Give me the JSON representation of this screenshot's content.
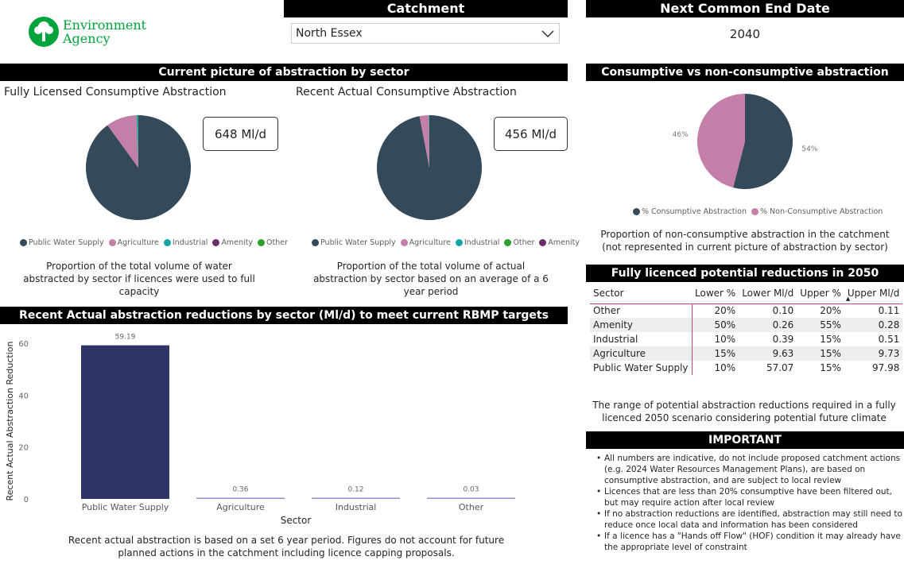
{
  "logo": {
    "text_line1": "Environment",
    "text_line2": "Agency",
    "color": "#00A33B"
  },
  "catchment": {
    "title": "Catchment",
    "selected": "North Essex"
  },
  "end_date": {
    "title": "Next Common End Date",
    "value": "2040"
  },
  "sector_section": {
    "title": "Current picture of abstraction by sector"
  },
  "colors": {
    "Public Water Supply": "#344a5a",
    "Agriculture": "#c47fa8",
    "Industrial": "#15a5a8",
    "Amenity": "#6b2d6b",
    "Other": "#2ca02c",
    "Consumptive": "#344a5a",
    "NonConsumptive": "#c47fa8"
  },
  "licensed": {
    "title": "Fully Licensed Consumptive Abstraction",
    "total": "648 Ml/d",
    "legend": [
      "Public Water Supply",
      "Agriculture",
      "Industrial",
      "Amenity",
      "Other"
    ],
    "caption": "Proportion of the total volume of water abstracted by sector if licences were used to full capacity"
  },
  "actual": {
    "title": "Recent Actual Consumptive Abstraction",
    "total": "456 Ml/d",
    "legend": [
      "Public Water Supply",
      "Agriculture",
      "Industrial",
      "Other",
      "Amenity"
    ],
    "caption": "Proportion of the total volume of actual abstraction by sector based on an average of a 6 year period"
  },
  "consumptive": {
    "title": "Consumptive vs non-consumptive abstraction",
    "legend": [
      "% Consumptive Abstraction",
      "% Non-Consumptive Abstraction"
    ],
    "caption": "Proportion of non-consumptive abstraction in the catchment (not represented in current picture of abstraction by sector)"
  },
  "bar_section": {
    "title": "Recent Actual abstraction reductions by sector (Ml/d) to meet current RBMP targets",
    "footnote": "Recent actual abstraction is based on a set 6 year period. Figures do not account for future planned actions in the catchment including licence capping proposals."
  },
  "chart_data": [
    {
      "type": "pie",
      "title": "Fully Licensed Consumptive Abstraction",
      "categories": [
        "Public Water Supply",
        "Agriculture",
        "Industrial",
        "Amenity",
        "Other"
      ],
      "values": [
        90.0,
        9.4,
        0.5,
        0.05,
        0.05
      ]
    },
    {
      "type": "pie",
      "title": "Recent Actual Consumptive Abstraction",
      "categories": [
        "Public Water Supply",
        "Agriculture",
        "Industrial",
        "Other",
        "Amenity"
      ],
      "values": [
        97.0,
        2.8,
        0.15,
        0.03,
        0.02
      ]
    },
    {
      "type": "pie",
      "title": "Consumptive vs non-consumptive abstraction",
      "categories": [
        "% Consumptive Abstraction",
        "% Non-Consumptive Abstraction"
      ],
      "values": [
        54,
        46
      ],
      "labels": [
        "54%",
        "46%"
      ]
    },
    {
      "type": "bar",
      "categories": [
        "Public Water Supply",
        "Agriculture",
        "Industrial",
        "Other"
      ],
      "values": [
        59.19,
        0.36,
        0.12,
        0.03
      ],
      "labels": [
        "59.19",
        "0.36",
        "0.12",
        "0.03"
      ],
      "xlabel": "Sector",
      "ylabel": "Recent Actual Abstraction Reduction",
      "ylim": [
        0,
        65
      ],
      "yticks": [
        0,
        20,
        40,
        60
      ],
      "colors": [
        "#2e3566",
        "#9b8fc7",
        "#9b8fc7",
        "#9b8fc7"
      ]
    }
  ],
  "reductions": {
    "title": "Fully licenced potential reductions in 2050",
    "columns": [
      "Sector",
      "Lower %",
      "Lower Ml/d",
      "Upper %",
      "Upper Ml/d"
    ],
    "rows": [
      [
        "Other",
        "20%",
        "0.10",
        "20%",
        "0.11"
      ],
      [
        "Amenity",
        "50%",
        "0.26",
        "55%",
        "0.28"
      ],
      [
        "Industrial",
        "10%",
        "0.39",
        "15%",
        "0.51"
      ],
      [
        "Agriculture",
        "15%",
        "9.63",
        "15%",
        "9.73"
      ],
      [
        "Public Water Supply",
        "10%",
        "57.07",
        "15%",
        "97.98"
      ]
    ],
    "caption": "The range of potential abstraction reductions required in a fully licenced 2050 scenario considering potential future climate"
  },
  "important": {
    "title": "IMPORTANT",
    "items": [
      "All numbers are indicative, do not include proposed catchment actions (e.g. 2024 Water Resources Management Plans), are based on consumptive abstraction, and are subject to local review",
      "Licences that are less than 20% consumptive have been filtered out, but may require action after local review",
      "If no abstraction reductions are identified, abstraction may still need to reduce once local data and information has been considered",
      "If a licence has a \"Hands off Flow\" (HOF) condition it may already have the appropriate level of constraint"
    ]
  }
}
